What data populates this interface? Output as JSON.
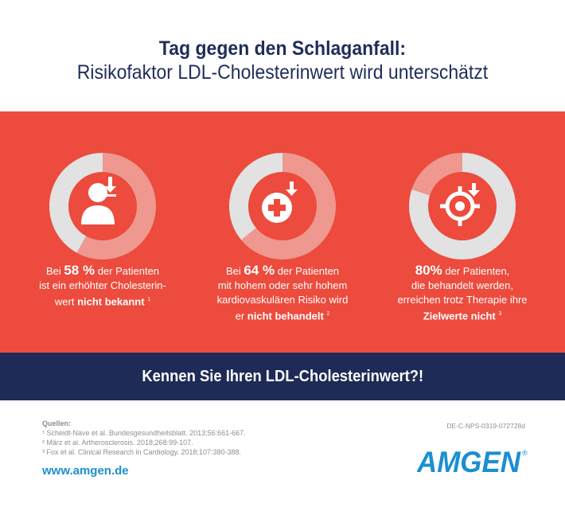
{
  "header": {
    "title": "Tag gegen den Schlaganfall:",
    "subtitle": "Risikofaktor LDL-Cholesterinwert wird unterschätzt"
  },
  "chart_data": [
    {
      "type": "pie",
      "title": "",
      "values": [
        58,
        42
      ],
      "categories": [
        "nicht bekannt",
        "bekannt"
      ],
      "colors": [
        "#ee988f",
        "#e2e2e2"
      ],
      "center_icon": "person-download-icon"
    },
    {
      "type": "pie",
      "title": "",
      "values": [
        64,
        36
      ],
      "categories": [
        "nicht behandelt",
        "behandelt"
      ],
      "colors": [
        "#ee988f",
        "#e2e2e2"
      ],
      "center_icon": "medical-cross-download-icon"
    },
    {
      "type": "pie",
      "title": "",
      "values": [
        80,
        20
      ],
      "categories": [
        "Zielwerte nicht erreicht",
        "Zielwerte erreicht"
      ],
      "colors": [
        "#e2e2e2",
        "#ee988f"
      ],
      "center_icon": "target-crosshair-icon"
    }
  ],
  "stats": [
    {
      "pre": "Bei ",
      "pct": "58 %",
      "l1": " der Patienten",
      "l2": "ist ein erhöhter Cholesterin-",
      "l3a": "wert ",
      "l3b": "nicht bekannt",
      "sup": "1"
    },
    {
      "pre": "Bei ",
      "pct": "64 %",
      "l1": " der Patienten",
      "l2": "mit hohem oder sehr hohem",
      "l3": "kardiovaskulären Risiko wird",
      "l4a": "er ",
      "l4b": "nicht behandelt",
      "sup": "2"
    },
    {
      "pct": "80%",
      "l1": " der Patienten,",
      "l2": "die behandelt werden,",
      "l3": "erreichen trotz Therapie ihre",
      "l4b": "Zielwerte nicht",
      "sup": "3"
    }
  ],
  "cta": "Kennen Sie Ihren LDL-Cholesterinwert?!",
  "sources": {
    "heading": "Quellen:",
    "items": [
      "¹ Scheidt-Nave et al. Bundesgesundheitsblatt. 2013;56:661-667.",
      "² März et al. Artheroscler​osis. 2018;268:99-107.",
      "³ Fox et al. Clinical Research in Cardiology. 2018;107:380-388."
    ]
  },
  "doc_code": "DE-C-NPS-0319-072728d",
  "url": "www.amgen.de",
  "brand": {
    "logo_text": "AMGEN",
    "color": "#1b8fd1",
    "registered": "®"
  },
  "colors": {
    "red": "#ec4b3d",
    "navy": "#1e2b56",
    "donut_accent": "#ee988f",
    "donut_rest": "#e2e2e2"
  }
}
